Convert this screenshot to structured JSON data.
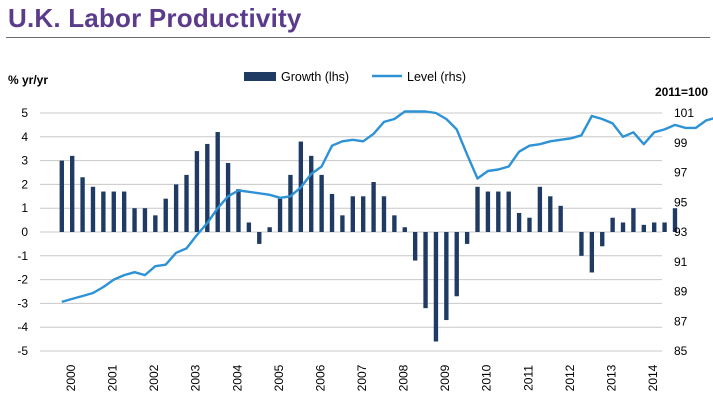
{
  "chart_data": {
    "type": "bar+line",
    "title": "U.K. Labor Productivity",
    "left_axis": {
      "label": "% yr/yr",
      "min": -5,
      "max": 5,
      "step": 1
    },
    "right_axis": {
      "label": "2011=100",
      "min": 85,
      "max": 101,
      "step": 2
    },
    "x_ticks": [
      "2000",
      "2001",
      "2002",
      "2003",
      "2004",
      "2005",
      "2006",
      "2007",
      "2008",
      "2009",
      "2010",
      "2011",
      "2012",
      "2013",
      "2014"
    ],
    "x_start": 1999.875,
    "x_step": 0.25,
    "legend": {
      "growth": "Growth (lhs)",
      "level": "Level (rhs)"
    },
    "colors": {
      "growth": "#1f3b63",
      "level": "#2e92d6",
      "grid": "#c8c8c8"
    },
    "series": [
      {
        "name": "Growth (lhs)",
        "axis": "left",
        "kind": "bar",
        "values": [
          3.0,
          3.2,
          2.3,
          1.9,
          1.7,
          1.7,
          1.7,
          1.0,
          1.0,
          0.7,
          1.4,
          2.0,
          2.4,
          3.4,
          3.7,
          4.2,
          2.9,
          1.8,
          0.4,
          -0.5,
          0.2,
          1.4,
          2.4,
          3.8,
          3.2,
          2.4,
          1.6,
          0.7,
          1.5,
          1.5,
          2.1,
          1.5,
          0.7,
          0.2,
          -1.2,
          -3.2,
          -4.6,
          -3.7,
          -2.7,
          -0.5,
          1.9,
          1.7,
          1.7,
          1.7,
          0.8,
          0.6,
          1.9,
          1.5,
          1.1,
          0.0,
          -1.0,
          -1.7,
          -0.6,
          0.6,
          0.4,
          1.0,
          0.3,
          0.4,
          0.4,
          1.0
        ]
      },
      {
        "name": "Level (rhs)",
        "axis": "right",
        "kind": "line",
        "values": [
          88.3,
          88.5,
          88.7,
          88.9,
          89.3,
          89.8,
          90.1,
          90.3,
          90.1,
          90.7,
          90.8,
          91.6,
          91.9,
          92.8,
          93.6,
          94.6,
          95.4,
          95.8,
          95.7,
          95.6,
          95.5,
          95.3,
          95.4,
          96.0,
          96.9,
          97.4,
          98.8,
          99.1,
          99.2,
          99.1,
          99.6,
          100.4,
          100.6,
          101.1,
          101.1,
          101.1,
          101.0,
          100.6,
          99.9,
          98.2,
          96.6,
          97.1,
          97.2,
          97.4,
          98.4,
          98.8,
          98.9,
          99.1,
          99.2,
          99.3,
          99.5,
          100.8,
          100.6,
          100.3,
          99.4,
          99.7,
          98.9,
          99.7,
          99.9,
          100.2,
          100.0,
          100.0,
          100.5,
          100.7,
          101.0
        ]
      }
    ]
  }
}
